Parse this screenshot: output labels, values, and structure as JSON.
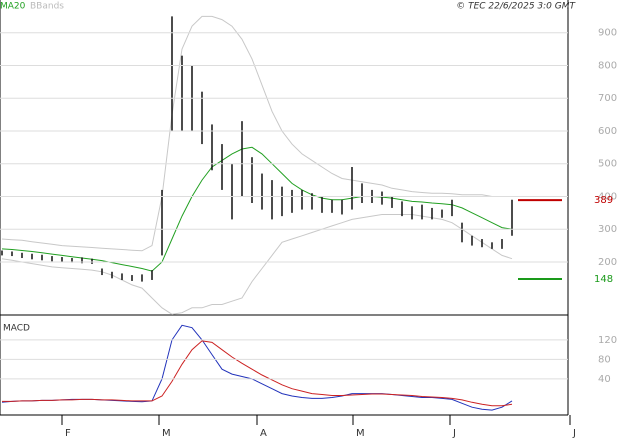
{
  "chart_data": [
    {
      "type": "ohlc",
      "copyright": "© TEC 22/6/2025 3:0 GMT",
      "high": [
        235,
        232,
        228,
        225,
        222,
        218,
        215,
        212,
        214,
        210,
        180,
        170,
        165,
        160,
        162,
        175,
        420,
        950,
        830,
        800,
        720,
        620,
        560,
        500,
        630,
        520,
        470,
        450,
        430,
        420,
        420,
        410,
        400,
        390,
        390,
        490,
        440,
        420,
        415,
        400,
        385,
        370,
        375,
        365,
        360,
        390,
        320,
        280,
        270,
        260,
        270,
        390
      ],
      "low": [
        220,
        218,
        212,
        208,
        205,
        202,
        200,
        198,
        196,
        194,
        160,
        150,
        145,
        142,
        140,
        145,
        220,
        600,
        600,
        600,
        560,
        480,
        420,
        330,
        400,
        380,
        360,
        330,
        340,
        350,
        360,
        360,
        350,
        350,
        345,
        360,
        380,
        380,
        375,
        365,
        340,
        330,
        330,
        330,
        335,
        340,
        260,
        250,
        245,
        240,
        240,
        280
      ],
      "ma": {
        "name": "MA20",
        "color": "#22a022",
        "values": [
          240,
          238,
          235,
          232,
          228,
          224,
          220,
          216,
          212,
          208,
          204,
          198,
          192,
          186,
          180,
          172,
          200,
          270,
          340,
          400,
          450,
          490,
          510,
          530,
          545,
          550,
          530,
          500,
          470,
          440,
          420,
          405,
          395,
          390,
          390,
          395,
          400,
          400,
          398,
          395,
          390,
          385,
          383,
          380,
          378,
          375,
          365,
          350,
          335,
          320,
          305,
          300
        ]
      },
      "bands": {
        "name": "BBands",
        "color": "#c8c8c8",
        "upper": [
          270,
          268,
          266,
          262,
          258,
          254,
          250,
          248,
          246,
          244,
          242,
          240,
          238,
          236,
          234,
          250,
          400,
          650,
          850,
          920,
          950,
          950,
          940,
          920,
          880,
          820,
          740,
          660,
          600,
          560,
          530,
          510,
          490,
          470,
          455,
          450,
          445,
          440,
          435,
          425,
          420,
          415,
          412,
          410,
          410,
          408,
          405,
          405,
          405,
          400,
          400,
          400
        ],
        "lower": [
          210,
          205,
          200,
          195,
          190,
          185,
          182,
          180,
          178,
          175,
          170,
          160,
          145,
          130,
          120,
          90,
          60,
          40,
          45,
          60,
          60,
          70,
          70,
          80,
          90,
          140,
          180,
          220,
          260,
          270,
          280,
          290,
          300,
          310,
          320,
          330,
          335,
          340,
          345,
          345,
          345,
          345,
          340,
          335,
          330,
          320,
          300,
          280,
          260,
          240,
          220,
          210
        ]
      },
      "levels": [
        {
          "value": 389,
          "color": "#c00000"
        },
        {
          "value": 148,
          "color": "#1a9a1a"
        }
      ],
      "ylim": [
        38,
        1000
      ],
      "yticks": [
        200,
        300,
        400,
        500,
        600,
        700,
        800,
        900
      ],
      "xlim": [
        0,
        57
      ],
      "grid": true
    },
    {
      "type": "line",
      "title": "MACD",
      "series": [
        {
          "color": "#2233bb",
          "values": [
            -8,
            -6,
            -5,
            -5,
            -4,
            -4,
            -3,
            -2,
            -2,
            -2,
            -3,
            -4,
            -5,
            -6,
            -7,
            -5,
            40,
            120,
            150,
            145,
            120,
            90,
            60,
            50,
            45,
            40,
            30,
            20,
            10,
            5,
            2,
            0,
            0,
            2,
            5,
            10,
            10,
            10,
            10,
            8,
            6,
            4,
            2,
            2,
            0,
            -2,
            -10,
            -18,
            -22,
            -24,
            -18,
            -5
          ]
        },
        {
          "color": "#cc2222",
          "values": [
            -6,
            -6,
            -5,
            -5,
            -4,
            -4,
            -3,
            -3,
            -2,
            -2,
            -3,
            -3,
            -4,
            -5,
            -5,
            -5,
            5,
            35,
            70,
            100,
            118,
            115,
            100,
            85,
            72,
            60,
            48,
            38,
            28,
            20,
            15,
            10,
            8,
            6,
            6,
            7,
            8,
            9,
            9,
            8,
            7,
            6,
            4,
            3,
            2,
            0,
            -3,
            -8,
            -12,
            -15,
            -15,
            -12
          ]
        }
      ],
      "ylim": [
        -34,
        165
      ],
      "yticks": [
        40,
        80,
        120
      ],
      "xlim": [
        0,
        57
      ],
      "xticks": [
        {
          "value": 6,
          "label": "F"
        },
        {
          "value": 15.7,
          "label": "M"
        },
        {
          "value": 25.5,
          "label": "A"
        },
        {
          "value": 35.1,
          "label": "M"
        },
        {
          "value": 44.8,
          "label": "J"
        },
        {
          "value": 56.8,
          "label": "J"
        }
      ],
      "grid": true
    }
  ]
}
